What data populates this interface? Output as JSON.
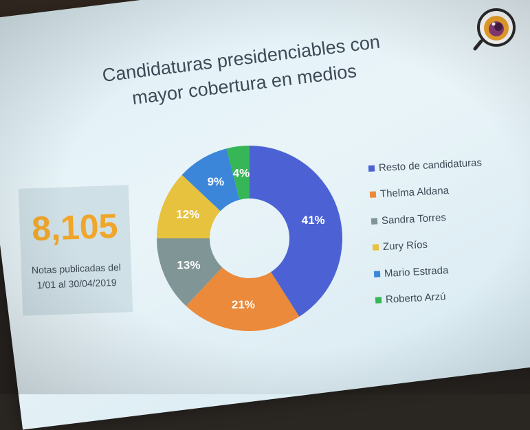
{
  "title": {
    "line1": "Candidaturas presidenciables con",
    "line2": "mayor cobertura en medios"
  },
  "stat": {
    "value": "8,105",
    "caption_line1": "Notas publicadas del",
    "caption_line2": "1/01 al 30/04/2019"
  },
  "chart_data": {
    "type": "pie",
    "title": "Candidaturas presidenciables con mayor cobertura en medios",
    "donut": true,
    "legend_position": "right",
    "slices": [
      {
        "label": "Resto de candidaturas",
        "value": 41,
        "display": "41%",
        "color": "#4c62d4"
      },
      {
        "label": "Thelma Aldana",
        "value": 21,
        "display": "21%",
        "color": "#ea8a3a"
      },
      {
        "label": "Sandra Torres",
        "value": 13,
        "display": "13%",
        "color": "#7f9596"
      },
      {
        "label": "Zury Ríos",
        "value": 12,
        "display": "12%",
        "color": "#e7c23e"
      },
      {
        "label": "Mario Estrada",
        "value": 9,
        "display": "9%",
        "color": "#3b86d8"
      },
      {
        "label": "Roberto Arzú",
        "value": 4,
        "display": "4%",
        "color": "#36b657"
      }
    ]
  },
  "logo": {
    "icon": "eye-magnifier-icon"
  }
}
